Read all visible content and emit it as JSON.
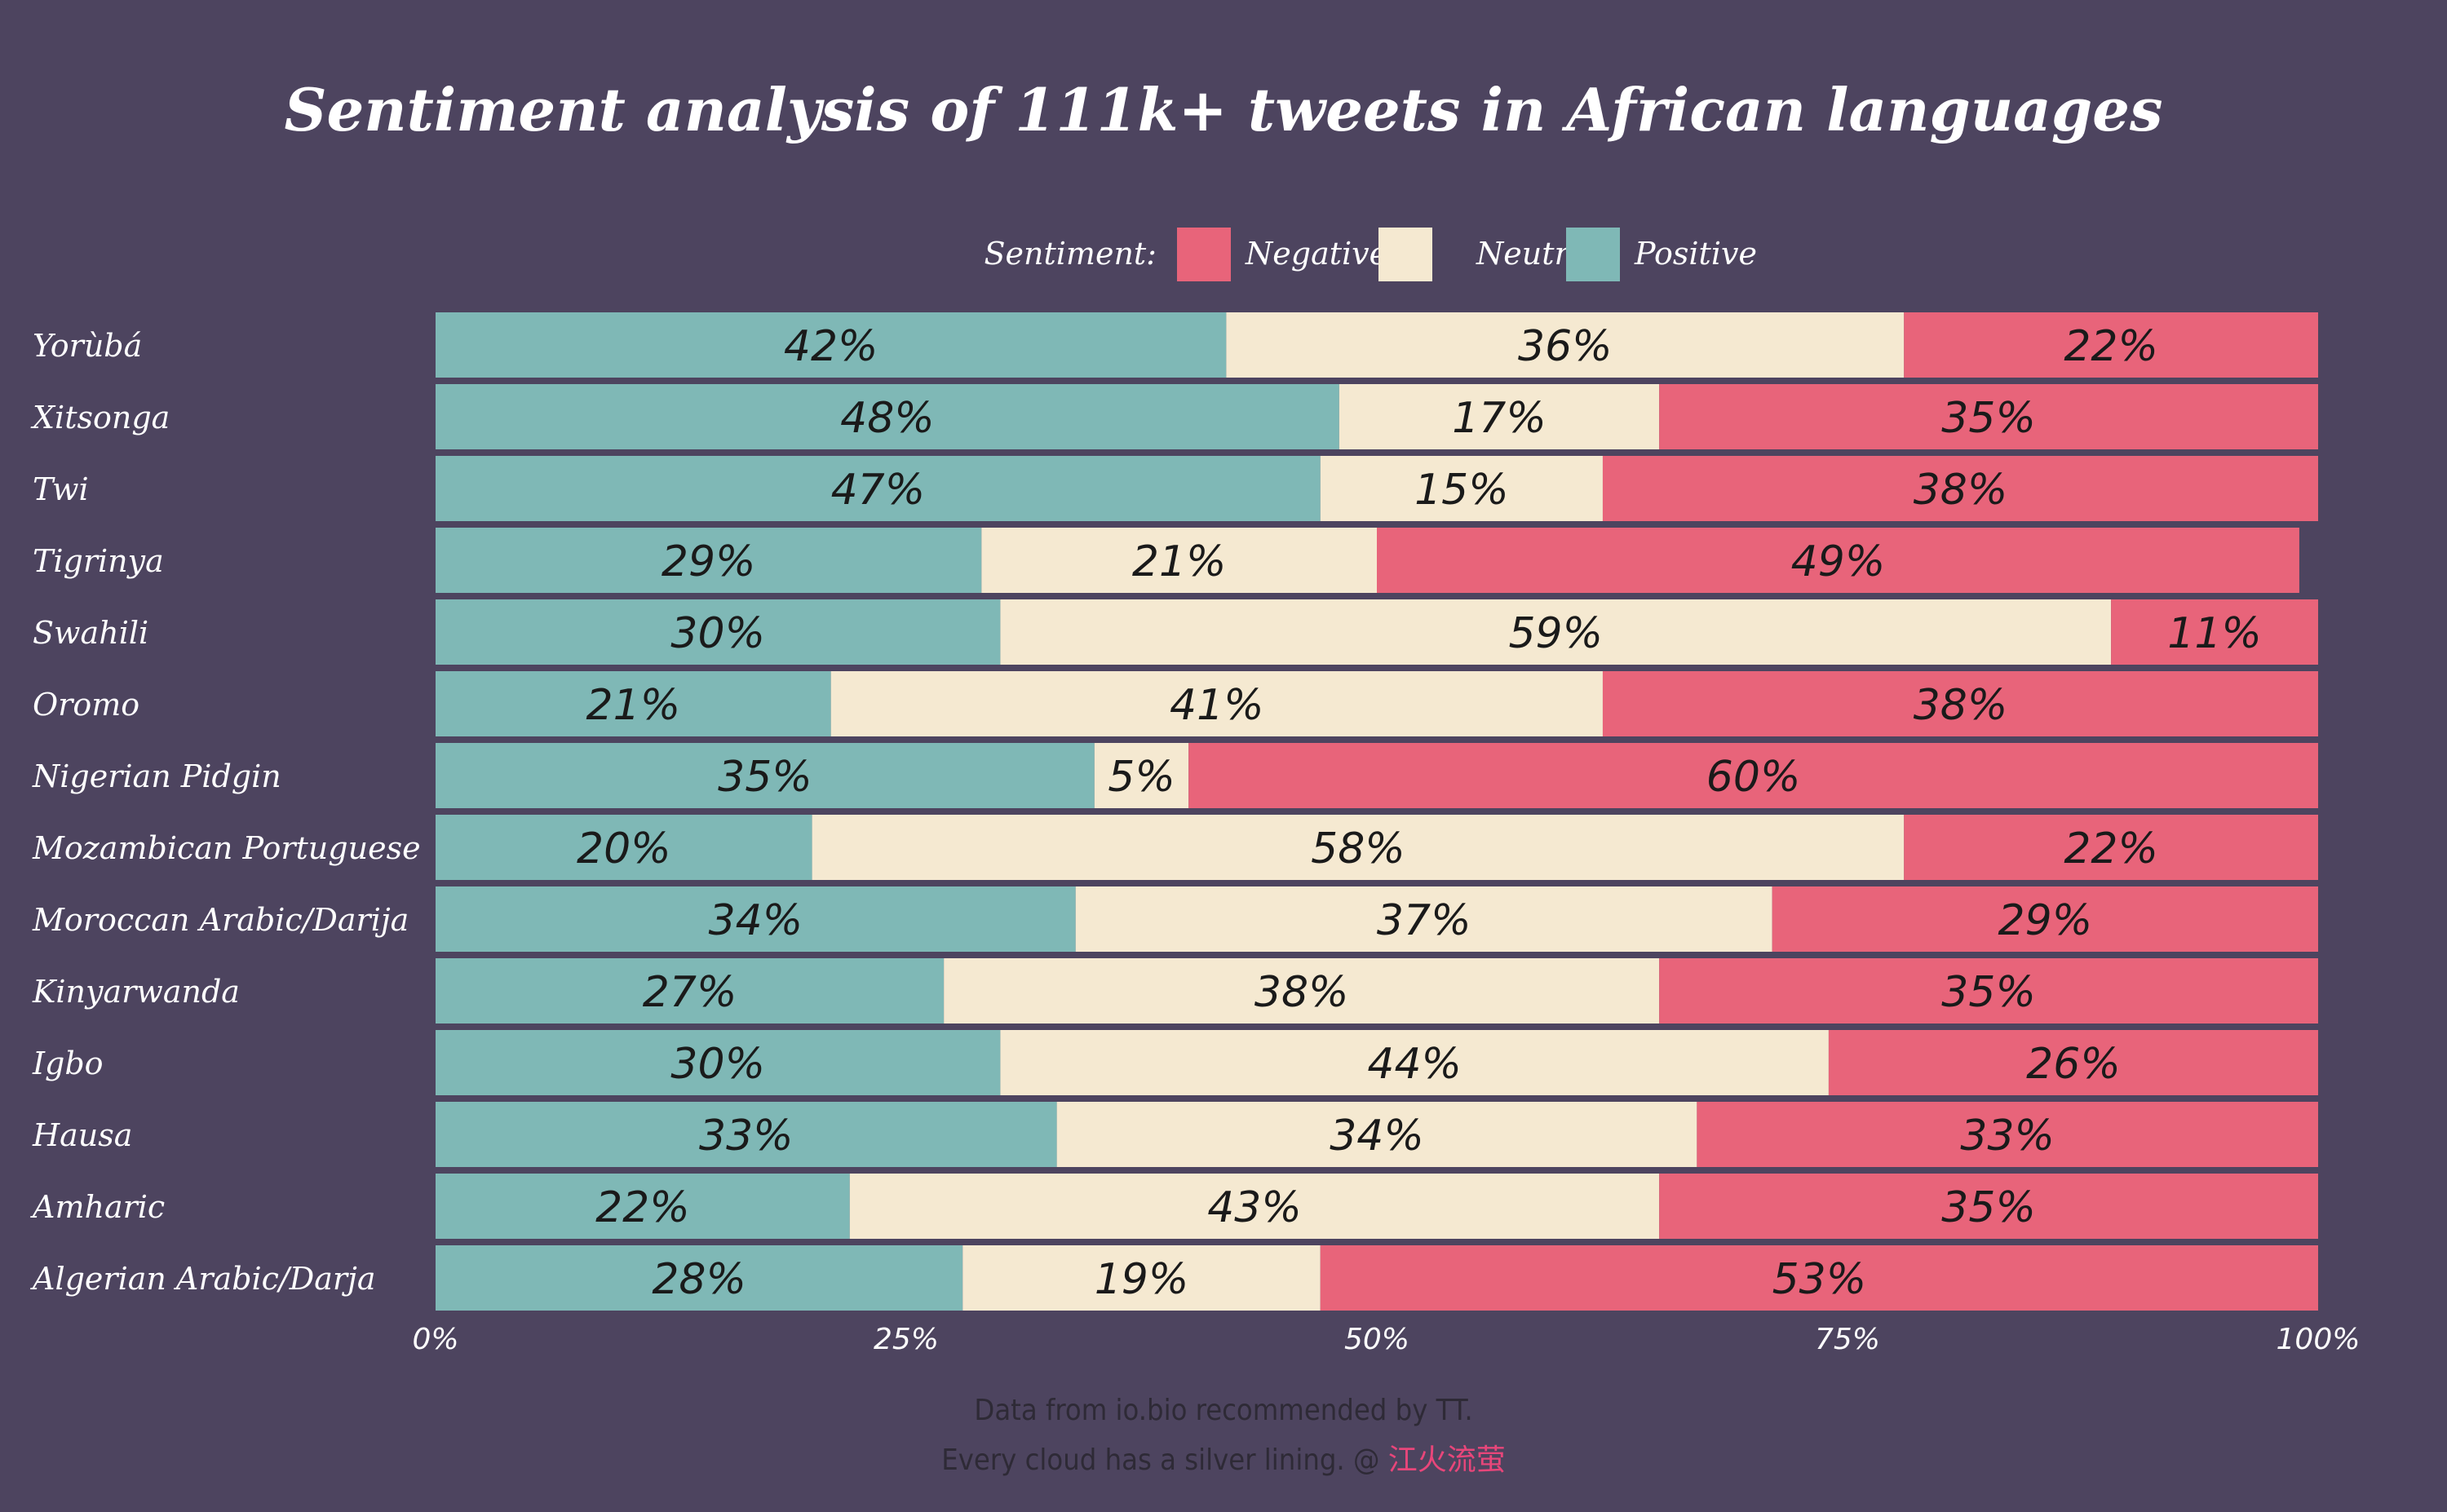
{
  "chart_data": {
    "type": "bar",
    "orientation": "horizontal",
    "stacked": true,
    "title": "Sentiment analysis of 111k+ tweets in African languages",
    "legend": {
      "title": "Sentiment:",
      "entries": [
        "Negative",
        "Neutral",
        "Positive"
      ],
      "placement": "top"
    },
    "categories": [
      "Yorùbá",
      "Xitsonga",
      "Twi",
      "Tigrinya",
      "Swahili",
      "Oromo",
      "Nigerian Pidgin",
      "Mozambican Portuguese",
      "Moroccan Arabic/Darija",
      "Kinyarwanda",
      "Igbo",
      "Hausa",
      "Amharic",
      "Algerian Arabic/Darja"
    ],
    "series": [
      {
        "name": "Positive",
        "color": "#7fb8b6",
        "values": [
          42,
          48,
          47,
          29,
          30,
          21,
          35,
          20,
          34,
          27,
          30,
          33,
          22,
          28
        ]
      },
      {
        "name": "Neutral",
        "color": "#f5e9d1",
        "values": [
          36,
          17,
          15,
          21,
          59,
          41,
          5,
          58,
          37,
          38,
          44,
          34,
          43,
          19
        ]
      },
      {
        "name": "Negative",
        "color": "#e8647a",
        "values": [
          22,
          35,
          38,
          49,
          11,
          38,
          60,
          22,
          29,
          35,
          26,
          33,
          35,
          53
        ]
      }
    ],
    "xticks": [
      "0%",
      "25%",
      "50%",
      "75%",
      "100%"
    ],
    "xlim": [
      0,
      100
    ],
    "grid": false
  },
  "caption": {
    "line1": "Data from io.bio recommended by TT.",
    "line2_prefix": "Every cloud has a silver lining. @ ",
    "line2_author": "江火流萤",
    "author_color": "#e8467a"
  },
  "colors": {
    "background": "#4d445f",
    "positive": "#7fb8b6",
    "neutral": "#f5e9d1",
    "negative": "#e8647a"
  }
}
